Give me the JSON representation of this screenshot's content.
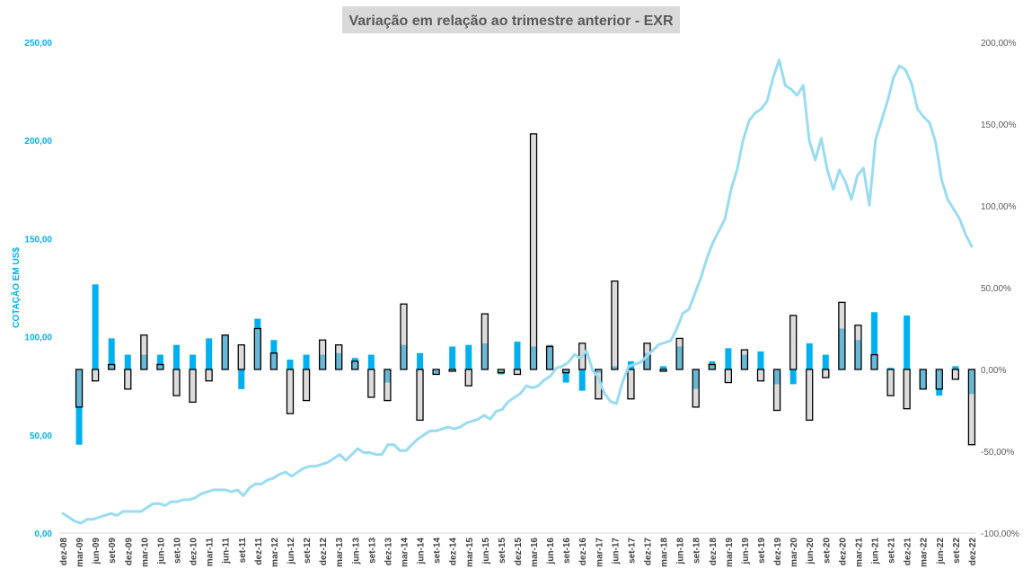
{
  "chart_data": {
    "type": "bar+line",
    "title": "Variação em relação ao trimestre anterior - EXR",
    "ylabel_left": "COTAÇÃO EM US$",
    "ylabel_right": "",
    "left_axis": {
      "min": 0,
      "max": 250,
      "ticks": [
        "0,00",
        "50,00",
        "100,00",
        "150,00",
        "200,00",
        "250,00"
      ]
    },
    "right_axis": {
      "min": -100,
      "max": 200,
      "ticks": [
        "-100,00%",
        "-50,00%",
        "0,00%",
        "50,00%",
        "100,00%",
        "150,00%",
        "200,00%"
      ]
    },
    "x_tick_labels": [
      "dez-08",
      "mar-09",
      "jun-09",
      "set-09",
      "dez-09",
      "mar-10",
      "jun-10",
      "set-10",
      "dez-10",
      "mar-11",
      "jun-11",
      "set-11",
      "dez-11",
      "mar-12",
      "jun-12",
      "set-12",
      "dez-12",
      "mar-13",
      "jun-13",
      "set-13",
      "dez-13",
      "mar-14",
      "jun-14",
      "set-14",
      "dez-14",
      "mar-15",
      "jun-15",
      "set-15",
      "dez-15",
      "mar-16",
      "jun-16",
      "set-16",
      "dez-16",
      "mar-17",
      "jun-17",
      "set-17",
      "dez-17",
      "mar-18",
      "jun-18",
      "set-18",
      "dez-18",
      "mar-19",
      "jun-19",
      "set-19",
      "dez-19",
      "mar-20",
      "jun-20",
      "set-20",
      "dez-20",
      "mar-21",
      "jun-21",
      "set-21",
      "dez-21",
      "mar-22",
      "jun-22",
      "set-22",
      "dez-22"
    ],
    "quarters": [
      "mar-09",
      "jun-09",
      "set-09",
      "dez-09",
      "mar-10",
      "jun-10",
      "set-10",
      "dez-10",
      "mar-11",
      "jun-11",
      "set-11",
      "dez-11",
      "mar-12",
      "jun-12",
      "set-12",
      "dez-12",
      "mar-13",
      "jun-13",
      "set-13",
      "dez-13",
      "mar-14",
      "jun-14",
      "set-14",
      "dez-14",
      "mar-15",
      "jun-15",
      "set-15",
      "dez-15",
      "mar-16",
      "jun-16",
      "set-16",
      "dez-16",
      "mar-17",
      "jun-17",
      "set-17",
      "dez-17",
      "mar-18",
      "jun-18",
      "set-18",
      "dez-18",
      "mar-19",
      "jun-19",
      "set-19",
      "dez-19",
      "mar-20",
      "jun-20",
      "set-20",
      "dez-20",
      "mar-21",
      "jun-21",
      "set-21",
      "dez-21",
      "mar-22",
      "jun-22",
      "set-22",
      "dez-22"
    ],
    "series": [
      {
        "name": "",
        "kind": "bar-blue",
        "values": [
          -46,
          52,
          19,
          9,
          9,
          9,
          15,
          9,
          19,
          21,
          -12,
          31,
          18,
          6,
          9,
          9,
          10,
          7,
          9,
          -8,
          15,
          10,
          -3,
          14,
          15,
          16,
          -3,
          17,
          14,
          15,
          -8,
          -13,
          -2,
          2,
          5,
          10,
          2,
          14,
          -12,
          5,
          13,
          9,
          11,
          -9,
          -9,
          16,
          9,
          25,
          18,
          35,
          1,
          33,
          -12,
          -16,
          2,
          -15
        ]
      },
      {
        "name": "",
        "kind": "bar-outline",
        "values": [
          -23,
          -7,
          3,
          -12,
          21,
          3,
          -16,
          -20,
          -7,
          21,
          15,
          25,
          10,
          -27,
          -19,
          18,
          15,
          5,
          -17,
          -19,
          40,
          -31,
          -3,
          -1,
          -10,
          34,
          -2,
          -3,
          144,
          14,
          -2,
          16,
          -18,
          54,
          -18,
          16,
          -1,
          19,
          -23,
          3,
          -8,
          12,
          -7,
          -25,
          33,
          -31,
          -5,
          41,
          27,
          9,
          -16,
          -24,
          -12,
          -12,
          -6,
          -46
        ]
      },
      {
        "name": "",
        "kind": "line",
        "x_index_range": [
          0,
          56
        ],
        "values": [
          10,
          8,
          6,
          5,
          7,
          7,
          8,
          9,
          10,
          9,
          11,
          11,
          11,
          11,
          13,
          15,
          15,
          14,
          16,
          16,
          17,
          17,
          18,
          20,
          21,
          22,
          22,
          22,
          21,
          22,
          19,
          23,
          25,
          25,
          27,
          28,
          30,
          31,
          29,
          31,
          33,
          34,
          34,
          35,
          36,
          38,
          40,
          37,
          40,
          43,
          41,
          41,
          40,
          40,
          45,
          45,
          42,
          42,
          45,
          48,
          50,
          52,
          52,
          53,
          54,
          53,
          54,
          56,
          57,
          58,
          60,
          58,
          62,
          63,
          67,
          69,
          71,
          75,
          74,
          75,
          78,
          80,
          84,
          85,
          87,
          91,
          89,
          93,
          83,
          79,
          71,
          67,
          66,
          77,
          85,
          86,
          87,
          90,
          93,
          96,
          97,
          98,
          104,
          112,
          114,
          122,
          130,
          140,
          148,
          154,
          160,
          175,
          185,
          200,
          210,
          214,
          216,
          220,
          232,
          241,
          228,
          226,
          223,
          228,
          200,
          190,
          201,
          185,
          175,
          185,
          179,
          170,
          182,
          186,
          167,
          200,
          210,
          220,
          232,
          238,
          236,
          229,
          216,
          212,
          209,
          199,
          180,
          170,
          165,
          160,
          152,
          146
        ]
      }
    ]
  }
}
